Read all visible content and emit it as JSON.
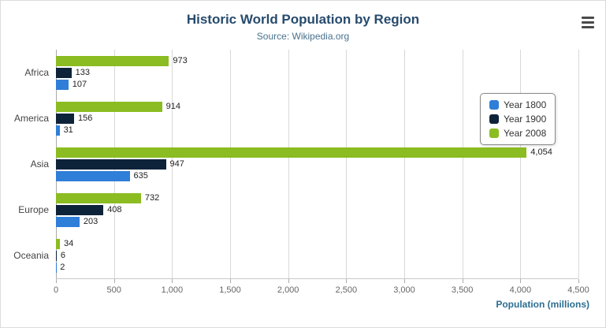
{
  "title": "Historic World Population by Region",
  "subtitle": "Source: Wikipedia.org",
  "colors": {
    "axis_title": "#2c6e91",
    "title_text": "#274b6d",
    "gridline": "#d8d8d8"
  },
  "chart_data": {
    "type": "bar",
    "orientation": "horizontal",
    "categories": [
      "Africa",
      "America",
      "Asia",
      "Europe",
      "Oceania"
    ],
    "series": [
      {
        "name": "Year 1800",
        "color": "#2f7ed8",
        "values": [
          107,
          31,
          635,
          203,
          2
        ]
      },
      {
        "name": "Year 1900",
        "color": "#0d233a",
        "values": [
          133,
          156,
          947,
          408,
          6
        ]
      },
      {
        "name": "Year 2008",
        "color": "#8bbc21",
        "values": [
          973,
          914,
          4054,
          732,
          34
        ]
      }
    ],
    "bar_display_order_top_to_bottom": [
      "Year 2008",
      "Year 1900",
      "Year 1800"
    ],
    "title": "Historic World Population by Region",
    "subtitle": "Source: Wikipedia.org",
    "xlabel": "Population (millions)",
    "ylabel": "",
    "xlim": [
      0,
      4500
    ],
    "xticks": [
      0,
      500,
      1000,
      1500,
      2000,
      2500,
      3000,
      3500,
      4000,
      4500
    ],
    "grid": true,
    "legend_position": "right",
    "data_labels": true
  }
}
